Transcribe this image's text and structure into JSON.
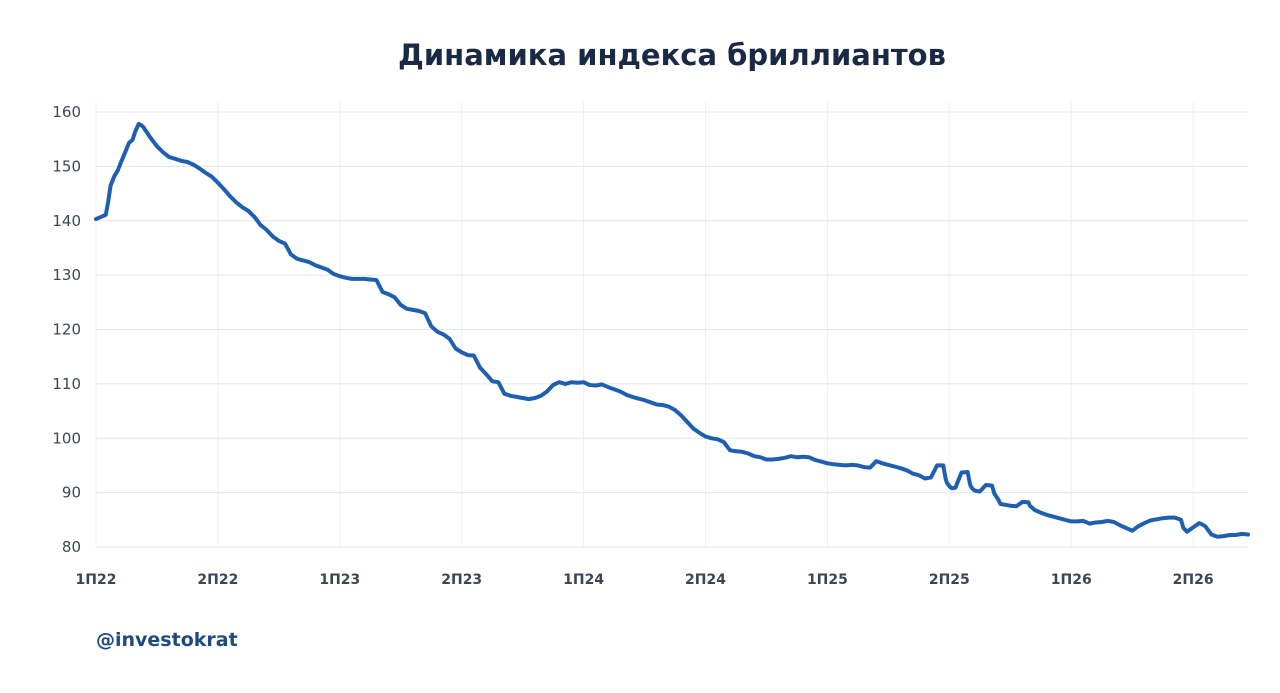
{
  "watermark": "@investokrat",
  "colors": {
    "line": "#1f5fb0",
    "title": "#1b2a44",
    "watermark": "#1e4a80",
    "grid": "#dfe6ec"
  },
  "chart_data": {
    "type": "line",
    "title": "Динамика индекса бриллиантов",
    "xlabel": "",
    "ylabel": "",
    "ylim": [
      80,
      160
    ],
    "yticks": [
      80,
      90,
      100,
      110,
      120,
      130,
      140,
      150,
      160
    ],
    "xticks": [
      "1П22",
      "2П22",
      "1П23",
      "2П23",
      "1П24",
      "2П24",
      "1П25",
      "2П25",
      "1П26",
      "2П26"
    ],
    "x_range": [
      0,
      9.45
    ],
    "grid": true,
    "legend": "none",
    "series": [
      {
        "x": [
          0,
          0.05,
          0.08,
          0.1,
          0.12,
          0.15,
          0.18,
          0.2,
          0.25,
          0.27,
          0.3,
          0.32,
          0.35,
          0.37,
          0.39,
          0.4,
          0.42,
          0.44,
          0.47,
          0.5,
          0.55,
          0.6,
          0.65,
          0.7,
          0.75,
          0.8,
          0.85,
          0.9,
          0.95,
          1.0,
          1.05,
          1.1,
          1.15,
          1.2,
          1.25,
          1.3,
          1.35,
          1.4,
          1.45,
          1.5,
          1.55,
          1.6,
          1.65,
          1.7,
          1.75,
          1.8,
          1.85,
          1.9,
          1.95,
          2.0,
          2.05,
          2.1,
          2.15,
          2.2,
          2.25,
          2.3,
          2.35,
          2.4,
          2.45,
          2.5,
          2.55,
          2.6,
          2.65,
          2.7,
          2.75,
          2.8,
          2.85,
          2.9,
          2.95,
          3.0,
          3.05,
          3.1,
          3.15,
          3.2,
          3.25,
          3.3,
          3.35,
          3.4,
          3.45,
          3.5,
          3.55,
          3.6,
          3.65,
          3.7,
          3.75,
          3.8,
          3.85,
          3.9,
          3.95,
          4.0,
          4.05,
          4.1,
          4.15,
          4.2,
          4.25,
          4.3,
          4.35,
          4.4,
          4.45,
          4.5,
          4.55,
          4.6,
          4.65,
          4.7,
          4.75,
          4.8,
          4.85,
          4.9,
          4.95,
          5.0,
          5.05,
          5.1,
          5.15,
          5.2,
          5.25,
          5.3,
          5.35,
          5.4,
          5.45,
          5.5,
          5.55,
          5.6,
          5.65,
          5.7,
          5.75,
          5.8,
          5.85,
          5.9,
          5.95,
          6.0,
          6.05,
          6.1,
          6.15,
          6.2,
          6.25,
          6.3,
          6.35,
          6.4,
          6.45,
          6.5,
          6.55,
          6.6,
          6.65,
          6.7,
          6.75,
          6.8,
          6.85,
          6.9,
          6.95,
          6.97,
          6.98,
          7.0,
          7.02,
          7.05,
          7.1,
          7.15,
          7.17,
          7.18,
          7.2,
          7.22,
          7.25,
          7.3,
          7.35,
          7.37,
          7.4,
          7.42,
          7.45,
          7.5,
          7.55,
          7.6,
          7.65,
          7.66,
          7.68,
          7.7,
          7.75,
          7.8,
          7.85,
          7.9,
          7.95,
          8.0,
          8.05,
          8.1,
          8.15,
          8.2,
          8.25,
          8.3,
          8.35,
          8.4,
          8.45,
          8.5,
          8.55,
          8.6,
          8.65,
          8.7,
          8.75,
          8.8,
          8.85,
          8.9,
          8.92,
          8.95,
          9.0,
          9.05,
          9.07,
          9.1,
          9.15,
          9.2,
          9.25,
          9.3,
          9.35,
          9.4,
          9.45
        ],
        "y": [
          140.3,
          140.8,
          141.1,
          143.5,
          146.5,
          148.2,
          149.3,
          150.5,
          153.2,
          154.3,
          154.9,
          156.3,
          157.8,
          157.6,
          157.2,
          156.8,
          156.2,
          155.5,
          154.6,
          153.7,
          152.6,
          151.7,
          151.4,
          151.0,
          150.8,
          150.3,
          149.6,
          148.8,
          148.1,
          147.0,
          145.8,
          144.5,
          143.4,
          142.5,
          141.8,
          140.7,
          139.2,
          138.3,
          137.1,
          136.3,
          135.8,
          133.8,
          133.0,
          132.7,
          132.4,
          131.8,
          131.4,
          131.0,
          130.2,
          129.8,
          129.5,
          129.3,
          129.3,
          129.3,
          129.2,
          129.1,
          126.9,
          126.5,
          125.9,
          124.5,
          123.8,
          123.6,
          123.4,
          123.0,
          120.6,
          119.6,
          119.1,
          118.3,
          116.5,
          115.8,
          115.3,
          115.2,
          113.0,
          111.8,
          110.5,
          110.3,
          108.2,
          107.8,
          107.6,
          107.4,
          107.2,
          107.4,
          107.8,
          108.6,
          109.8,
          110.3,
          110.0,
          110.3,
          110.2,
          110.3,
          109.8,
          109.7,
          109.9,
          109.4,
          109.0,
          108.6,
          108.0,
          107.6,
          107.3,
          107.0,
          106.6,
          106.2,
          106.1,
          105.8,
          105.2,
          104.2,
          103.0,
          101.8,
          101.0,
          100.3,
          100.0,
          99.8,
          99.3,
          97.8,
          97.6,
          97.5,
          97.2,
          96.7,
          96.5,
          96.1,
          96.1,
          96.2,
          96.4,
          96.7,
          96.5,
          96.6,
          96.5,
          96.0,
          95.7,
          95.4,
          95.2,
          95.1,
          95.0,
          95.1,
          95.0,
          94.7,
          94.6,
          95.8,
          95.4,
          95.1,
          94.8,
          94.5,
          94.1,
          93.5,
          93.2,
          92.6,
          92.8,
          95.0,
          95.0,
          92.5,
          91.8,
          91.2,
          90.8,
          90.9,
          93.7,
          93.8,
          91.5,
          91.0,
          90.5,
          90.3,
          90.2,
          91.4,
          91.3,
          89.8,
          88.8,
          87.9,
          87.8,
          87.6,
          87.5,
          88.3,
          88.2,
          87.6,
          87.2,
          86.8,
          86.3,
          85.9,
          85.6,
          85.3,
          85.0,
          84.7,
          84.7,
          84.8,
          84.3,
          84.5,
          84.6,
          84.8,
          84.6,
          84.0,
          83.5,
          83.0,
          83.8,
          84.4,
          84.9,
          85.1,
          85.3,
          85.4,
          85.4,
          85.0,
          83.5,
          82.8,
          83.6,
          84.4,
          84.2,
          83.8,
          82.3,
          81.9,
          82.0,
          82.2,
          82.2,
          82.4,
          82.3
        ]
      }
    ]
  }
}
